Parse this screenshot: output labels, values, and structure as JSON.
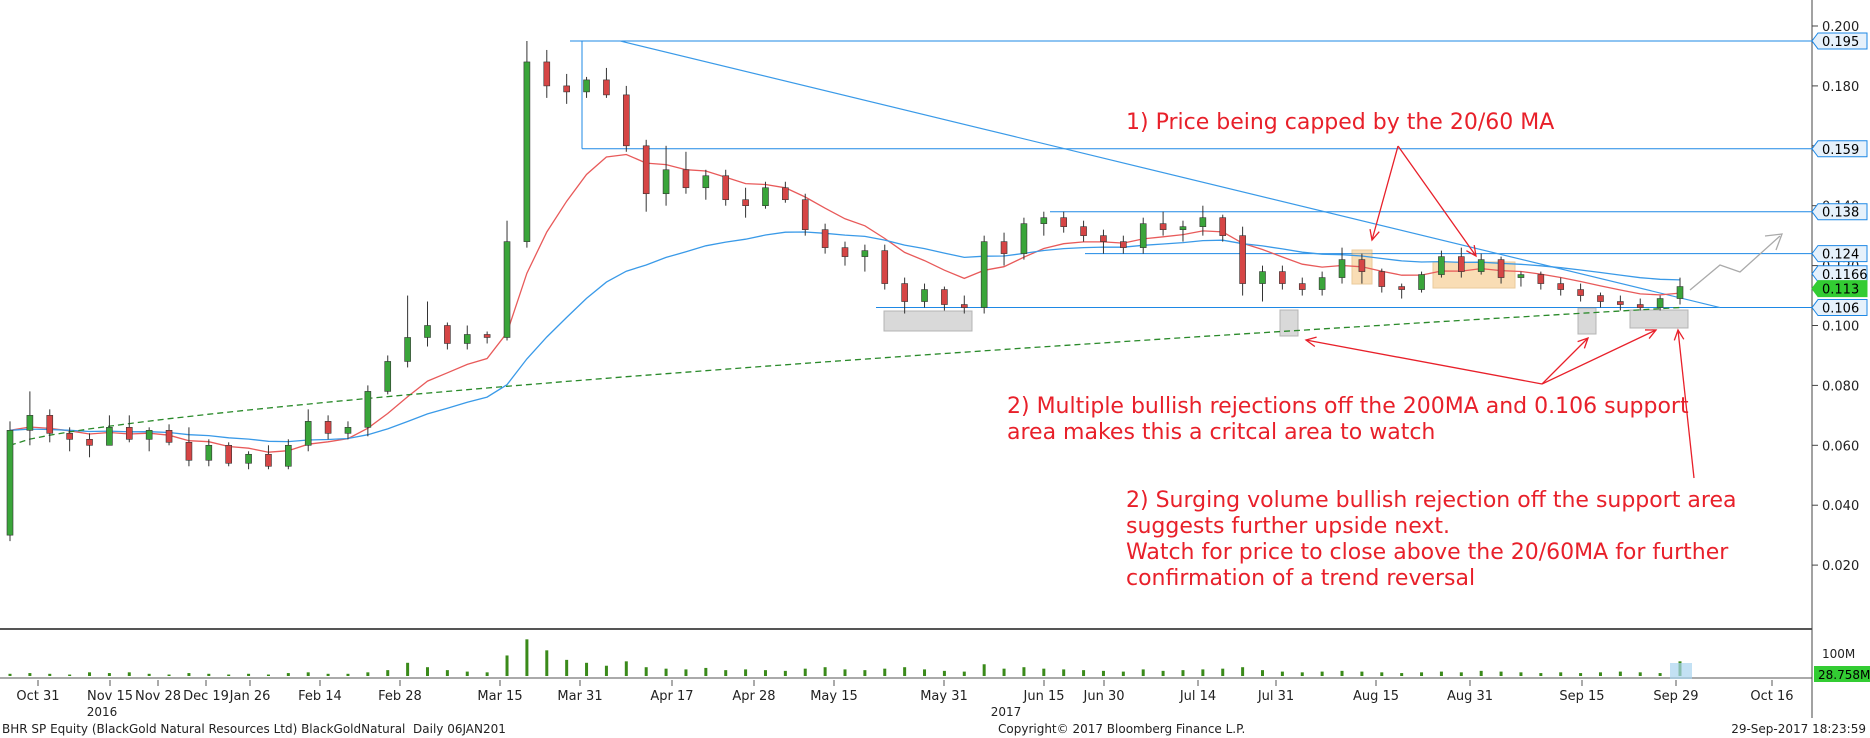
{
  "chart_data": {
    "type": "candlestick",
    "title": "",
    "y_axis": {
      "ticks": [
        "0.200",
        "0.180",
        "0.160",
        "0.140",
        "0.120",
        "0.100",
        "0.080",
        "0.060",
        "0.040",
        "0.020"
      ],
      "range": [
        0.0,
        0.2
      ],
      "position": "right"
    },
    "x_axis": {
      "tick_labels": [
        "Oct 31",
        "Nov 15",
        "Nov 28",
        "Dec 19",
        "Jan 26",
        "Feb 14",
        "Feb 28",
        "Mar 15",
        "Mar 31",
        "Apr 17",
        "Apr 28",
        "May 15",
        "May 31",
        "Jun 15",
        "Jun 30",
        "Jul 14",
        "Jul 31",
        "Aug 15",
        "Aug 31",
        "Sep 15",
        "Sep 29",
        "Oct 16"
      ],
      "year_labels": [
        "2016",
        "2017"
      ]
    },
    "price_labels": [
      {
        "value": 0.195,
        "label": "0.195",
        "color": "#1e88e5"
      },
      {
        "value": 0.159,
        "label": "0.159",
        "color": "#1e88e5"
      },
      {
        "value": 0.138,
        "label": "0.138",
        "color": "#1e88e5"
      },
      {
        "value": 0.124,
        "label": "0.124",
        "color": "#1e88e5"
      },
      {
        "value": 0.1166,
        "label": "0.1166",
        "color": "#1e88e5"
      },
      {
        "value": 0.113,
        "label": "0.113",
        "color": "#33cc33"
      },
      {
        "value": 0.106,
        "label": "0.106",
        "color": "#1e88e5"
      }
    ],
    "horizontal_lines": [
      0.195,
      0.159,
      0.138,
      0.124,
      0.106
    ],
    "ohlc": [
      [
        0.03,
        0.068,
        0.028,
        0.065
      ],
      [
        0.065,
        0.078,
        0.06,
        0.07
      ],
      [
        0.07,
        0.072,
        0.061,
        0.064
      ],
      [
        0.064,
        0.066,
        0.058,
        0.062
      ],
      [
        0.062,
        0.064,
        0.056,
        0.06
      ],
      [
        0.06,
        0.07,
        0.06,
        0.066
      ],
      [
        0.066,
        0.07,
        0.061,
        0.062
      ],
      [
        0.062,
        0.066,
        0.058,
        0.065
      ],
      [
        0.065,
        0.067,
        0.06,
        0.061
      ],
      [
        0.061,
        0.066,
        0.053,
        0.055
      ],
      [
        0.055,
        0.062,
        0.053,
        0.06
      ],
      [
        0.06,
        0.061,
        0.053,
        0.054
      ],
      [
        0.054,
        0.058,
        0.052,
        0.057
      ],
      [
        0.057,
        0.06,
        0.052,
        0.053
      ],
      [
        0.053,
        0.062,
        0.052,
        0.06
      ],
      [
        0.06,
        0.072,
        0.058,
        0.068
      ],
      [
        0.068,
        0.07,
        0.062,
        0.064
      ],
      [
        0.064,
        0.068,
        0.062,
        0.066
      ],
      [
        0.066,
        0.08,
        0.063,
        0.078
      ],
      [
        0.078,
        0.09,
        0.077,
        0.088
      ],
      [
        0.088,
        0.11,
        0.086,
        0.096
      ],
      [
        0.096,
        0.108,
        0.093,
        0.1
      ],
      [
        0.1,
        0.101,
        0.092,
        0.094
      ],
      [
        0.094,
        0.1,
        0.092,
        0.097
      ],
      [
        0.097,
        0.098,
        0.094,
        0.096
      ],
      [
        0.096,
        0.135,
        0.095,
        0.128
      ],
      [
        0.128,
        0.195,
        0.126,
        0.188
      ],
      [
        0.188,
        0.192,
        0.176,
        0.18
      ],
      [
        0.18,
        0.184,
        0.174,
        0.178
      ],
      [
        0.178,
        0.183,
        0.176,
        0.182
      ],
      [
        0.182,
        0.186,
        0.176,
        0.177
      ],
      [
        0.177,
        0.18,
        0.158,
        0.16
      ],
      [
        0.16,
        0.162,
        0.138,
        0.144
      ],
      [
        0.144,
        0.16,
        0.14,
        0.152
      ],
      [
        0.152,
        0.158,
        0.144,
        0.146
      ],
      [
        0.146,
        0.152,
        0.142,
        0.15
      ],
      [
        0.15,
        0.152,
        0.14,
        0.142
      ],
      [
        0.142,
        0.146,
        0.136,
        0.14
      ],
      [
        0.14,
        0.148,
        0.139,
        0.146
      ],
      [
        0.146,
        0.148,
        0.141,
        0.142
      ],
      [
        0.142,
        0.144,
        0.13,
        0.132
      ],
      [
        0.132,
        0.134,
        0.124,
        0.126
      ],
      [
        0.126,
        0.128,
        0.12,
        0.123
      ],
      [
        0.123,
        0.127,
        0.118,
        0.125
      ],
      [
        0.125,
        0.127,
        0.112,
        0.114
      ],
      [
        0.114,
        0.116,
        0.104,
        0.108
      ],
      [
        0.108,
        0.114,
        0.106,
        0.112
      ],
      [
        0.112,
        0.113,
        0.105,
        0.107
      ],
      [
        0.107,
        0.11,
        0.104,
        0.106
      ],
      [
        0.106,
        0.13,
        0.104,
        0.128
      ],
      [
        0.128,
        0.131,
        0.12,
        0.124
      ],
      [
        0.124,
        0.136,
        0.122,
        0.134
      ],
      [
        0.134,
        0.138,
        0.13,
        0.136
      ],
      [
        0.136,
        0.138,
        0.131,
        0.133
      ],
      [
        0.133,
        0.135,
        0.128,
        0.13
      ],
      [
        0.13,
        0.132,
        0.124,
        0.128
      ],
      [
        0.128,
        0.13,
        0.124,
        0.126
      ],
      [
        0.126,
        0.136,
        0.124,
        0.134
      ],
      [
        0.134,
        0.138,
        0.13,
        0.132
      ],
      [
        0.132,
        0.135,
        0.128,
        0.133
      ],
      [
        0.133,
        0.14,
        0.13,
        0.136
      ],
      [
        0.136,
        0.137,
        0.128,
        0.13
      ],
      [
        0.13,
        0.133,
        0.11,
        0.114
      ],
      [
        0.114,
        0.12,
        0.108,
        0.118
      ],
      [
        0.118,
        0.12,
        0.112,
        0.114
      ],
      [
        0.114,
        0.116,
        0.11,
        0.112
      ],
      [
        0.112,
        0.118,
        0.11,
        0.116
      ],
      [
        0.116,
        0.126,
        0.114,
        0.122
      ],
      [
        0.122,
        0.124,
        0.114,
        0.118
      ],
      [
        0.118,
        0.119,
        0.111,
        0.113
      ],
      [
        0.113,
        0.114,
        0.109,
        0.112
      ],
      [
        0.112,
        0.118,
        0.111,
        0.117
      ],
      [
        0.117,
        0.125,
        0.116,
        0.123
      ],
      [
        0.123,
        0.126,
        0.116,
        0.118
      ],
      [
        0.118,
        0.124,
        0.117,
        0.122
      ],
      [
        0.122,
        0.123,
        0.114,
        0.116
      ],
      [
        0.116,
        0.118,
        0.113,
        0.117
      ],
      [
        0.117,
        0.118,
        0.112,
        0.114
      ],
      [
        0.114,
        0.116,
        0.11,
        0.112
      ],
      [
        0.112,
        0.114,
        0.108,
        0.11
      ],
      [
        0.11,
        0.111,
        0.106,
        0.108
      ],
      [
        0.108,
        0.11,
        0.105,
        0.107
      ],
      [
        0.107,
        0.109,
        0.105,
        0.106
      ],
      [
        0.106,
        0.11,
        0.105,
        0.109
      ],
      [
        0.109,
        0.116,
        0.107,
        0.113
      ]
    ],
    "volume_axis": {
      "ticks": [
        "100M"
      ],
      "last_label": "28.758M"
    },
    "volume": [
      3,
      4,
      3,
      2,
      5,
      4,
      5,
      3,
      2,
      4,
      3,
      2,
      3,
      2,
      4,
      5,
      3,
      3,
      5,
      8,
      18,
      12,
      8,
      6,
      5,
      28,
      50,
      35,
      22,
      18,
      14,
      20,
      12,
      10,
      9,
      11,
      8,
      9,
      8,
      7,
      10,
      12,
      9,
      8,
      10,
      12,
      9,
      7,
      6,
      16,
      10,
      12,
      10,
      9,
      8,
      7,
      6,
      9,
      7,
      8,
      9,
      10,
      12,
      8,
      6,
      5,
      6,
      7,
      6,
      5,
      4,
      5,
      6,
      5,
      7,
      6,
      5,
      4,
      5,
      4,
      5,
      6,
      5,
      4,
      20
    ],
    "moving_averages": [
      {
        "name": "20MA",
        "color": "#e85a5a"
      },
      {
        "name": "60MA",
        "color": "#3a9ae8"
      },
      {
        "name": "200MA",
        "color": "#2a8a2a",
        "style": "dashed"
      }
    ]
  },
  "annotations": {
    "note1": "1) Price being capped by the 20/60 MA",
    "note2": "2) Multiple bullish rejections off the 200MA and 0.106 support\narea makes this a critcal area to watch",
    "note3": "2) Surging volume bullish rejection off the support area\nsuggests further upside next.\nWatch for price to close above the 20/60MA for further\nconfirmation of a trend reversal"
  },
  "footer": {
    "left": "BHR SP Equity (BlackGold Natural Resources Ltd) BlackGoldNatural  Daily 06JAN201",
    "center": "Copyright© 2017 Bloomberg Finance L.P.",
    "right": "29-Sep-2017 18:23:59"
  }
}
